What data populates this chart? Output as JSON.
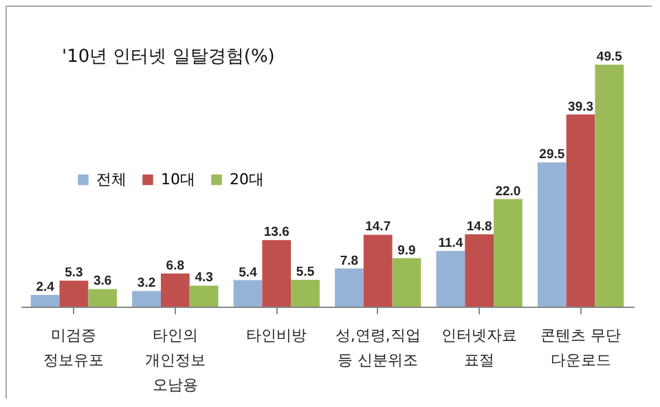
{
  "chart_data": {
    "type": "bar",
    "title": "'10년 인터넷 일탈경험(%)",
    "categories": [
      "미검증\n정보유포",
      "타인의\n개인정보\n오남용",
      "타인비방",
      "성,연령,직업\n등 신분위조",
      "인터넷자료\n표절",
      "콘텐츠 무단\n다운로드"
    ],
    "series": [
      {
        "name": "전체",
        "color": "#95b3d7",
        "values": [
          2.4,
          3.2,
          5.4,
          7.8,
          11.4,
          29.5
        ],
        "value_labels": [
          "2.4",
          "3.2",
          "5.4",
          "7.8",
          "11.4",
          "29.5"
        ]
      },
      {
        "name": "10대",
        "color": "#c0504d",
        "values": [
          5.3,
          6.8,
          13.6,
          14.7,
          14.8,
          39.3
        ],
        "value_labels": [
          "5.3",
          "6.8",
          "13.6",
          "14.7",
          "14.8",
          "39.3"
        ]
      },
      {
        "name": "20대",
        "color": "#9bbb59",
        "values": [
          3.6,
          4.3,
          5.5,
          9.9,
          22.0,
          49.5
        ],
        "value_labels": [
          "3.6",
          "4.3",
          "5.5",
          "9.9",
          "22.0",
          "49.5"
        ]
      }
    ],
    "legend": "top left"
  }
}
